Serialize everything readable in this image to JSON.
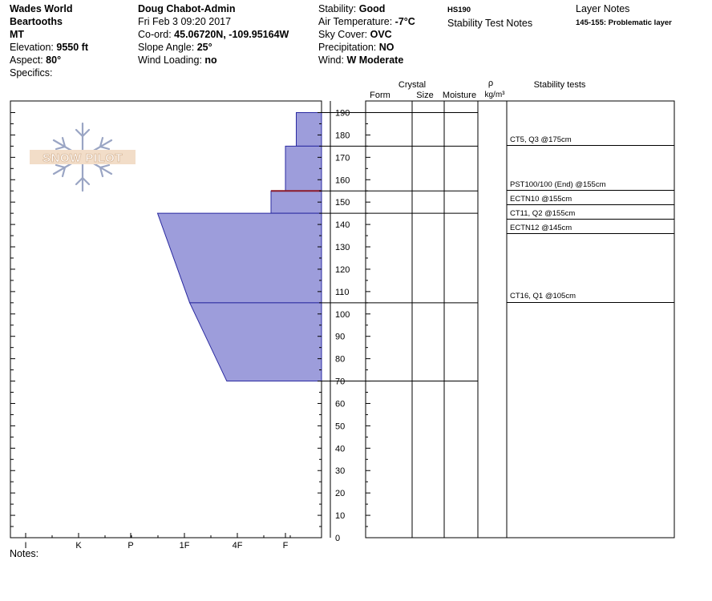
{
  "header": {
    "site": "Wades World",
    "range": "Beartooths",
    "state": "MT",
    "elevation_label": "Elevation:",
    "elevation": "9550 ft",
    "aspect_label": "Aspect:",
    "aspect": "80°",
    "specifics_label": "Specifics:",
    "observer": "Doug Chabot-Admin",
    "datetime": "Fri Feb 3 09:20 2017",
    "coord_label": "Co-ord:",
    "coord": "45.06720N, -109.95164W",
    "slope_label": "Slope Angle:",
    "slope": "25°",
    "wind_loading_label": "Wind Loading:",
    "wind_loading": "no",
    "stability_label": "Stability:",
    "stability": "Good",
    "air_temp_label": "Air Temperature:",
    "air_temp": "-7°C",
    "sky_label": "Sky Cover:",
    "sky": "OVC",
    "precip_label": "Precipitation:",
    "precip": "NO",
    "wind_label": "Wind:",
    "wind": "W Moderate",
    "hs": "HS190",
    "stability_test_notes": "Stability Test Notes",
    "layer_notes_title": "Layer Notes",
    "layer_note": "145-155: Problematic layer"
  },
  "logo_text": "SNOW PILOT",
  "notes_label": "Notes:",
  "columns": {
    "crystal": "Crystal",
    "form": "Form",
    "size": "Size",
    "moisture": "Moisture",
    "rho": "ρ",
    "density_unit": "kg/m³",
    "stability_tests": "Stability tests"
  },
  "colors": {
    "layer_fill": "#9d9ddb",
    "layer_edge": "#2a2aa0",
    "problem_layer": "#8b1a2a"
  },
  "chart_data": {
    "type": "area",
    "title": "",
    "ylabel": "",
    "ylim": [
      0,
      190
    ],
    "yticks": [
      0,
      10,
      20,
      30,
      40,
      50,
      60,
      70,
      80,
      90,
      100,
      110,
      120,
      130,
      140,
      150,
      160,
      170,
      180,
      190
    ],
    "hardness_scale": [
      "I",
      "K",
      "P",
      "1F",
      "4F",
      "F"
    ],
    "hardness_scale_values": [
      6,
      5,
      4,
      3,
      2,
      1
    ],
    "layers": [
      {
        "top": 190,
        "bottom": 175,
        "hardness_top": 0.7,
        "hardness_bottom": 0.7
      },
      {
        "top": 175,
        "bottom": 155,
        "hardness_top": 1.0,
        "hardness_bottom": 1.0
      },
      {
        "top": 155,
        "bottom": 145,
        "hardness_top": 1.3,
        "hardness_bottom": 1.3
      },
      {
        "top": 145,
        "bottom": 105,
        "hardness_top": 3.5,
        "hardness_bottom": 2.9
      },
      {
        "top": 105,
        "bottom": 70,
        "hardness_top": 2.9,
        "hardness_bottom": 2.2
      }
    ],
    "problem_layer_depth": 155,
    "layer_boundaries": [
      190,
      175,
      155,
      145,
      105,
      70
    ],
    "stability_tests": [
      {
        "depth": 175,
        "text": "CT5, Q3 @175cm"
      },
      {
        "depth": 155,
        "text": "PST100/100 (End) @155cm"
      },
      {
        "depth": 155,
        "text": "ECTN10 @155cm"
      },
      {
        "depth": 155,
        "text": "CT11, Q2 @155cm"
      },
      {
        "depth": 145,
        "text": "ECTN12 @145cm"
      },
      {
        "depth": 105,
        "text": "CT16, Q1 @105cm"
      }
    ]
  }
}
